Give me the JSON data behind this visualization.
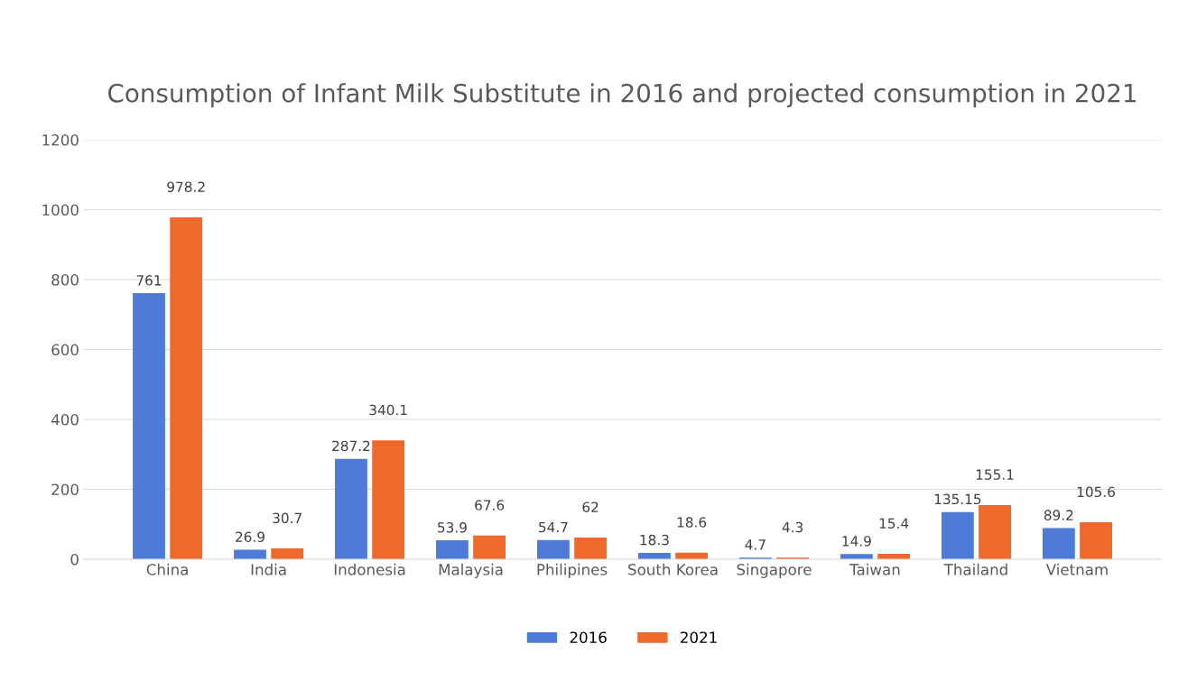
{
  "chart_data": {
    "type": "bar",
    "title": "Consumption of Infant Milk Substitute in 2016 and projected consumption in 2021",
    "categories": [
      "China",
      "India",
      "Indonesia",
      "Malaysia",
      "Philipines",
      "South Korea",
      "Singapore",
      "Taiwan",
      "Thailand",
      "Vietnam"
    ],
    "series": [
      {
        "name": "2016",
        "color": "#4f7bd8",
        "values": [
          761,
          26.9,
          287.2,
          53.9,
          54.7,
          18.3,
          4.7,
          14.9,
          135.15,
          89.2
        ]
      },
      {
        "name": "2021",
        "color": "#ee6a2c",
        "values": [
          978.2,
          30.7,
          340.1,
          67.6,
          62,
          18.6,
          4.3,
          15.4,
          155.1,
          105.6
        ]
      }
    ],
    "ylim": [
      0,
      1200
    ],
    "yticks": [
      0,
      200,
      400,
      600,
      800,
      1000,
      1200
    ],
    "grid": "y",
    "legend": "bottom",
    "data_labels": true
  }
}
